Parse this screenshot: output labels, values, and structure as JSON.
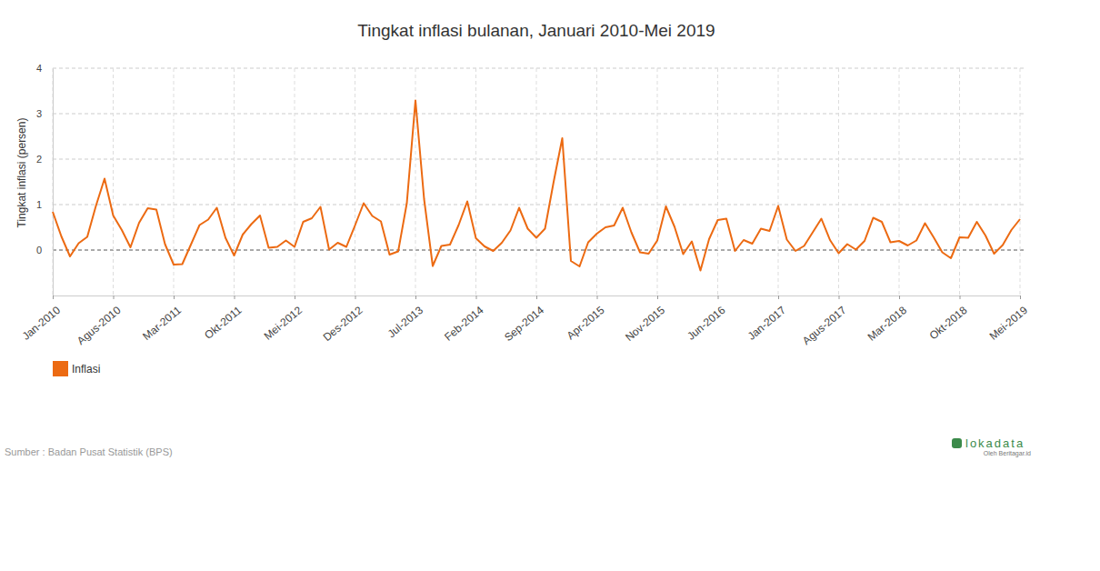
{
  "chart_data": {
    "type": "line",
    "title": "Tingkat inflasi bulanan, Januari 2010-Mei 2019",
    "y_label": "Tingkat inflasi (persen)",
    "categories": [
      "Jan-2010",
      null,
      null,
      null,
      null,
      null,
      null,
      "Agus-2010",
      null,
      null,
      null,
      null,
      null,
      null,
      "Mar-2011",
      null,
      null,
      null,
      null,
      null,
      null,
      "Okt-2011",
      null,
      null,
      null,
      null,
      null,
      null,
      "Mei-2012",
      null,
      null,
      null,
      null,
      null,
      null,
      "Des-2012",
      null,
      null,
      null,
      null,
      null,
      null,
      "Jul-2013",
      null,
      null,
      null,
      null,
      null,
      null,
      "Feb-2014",
      null,
      null,
      null,
      null,
      null,
      null,
      "Sep-2014",
      null,
      null,
      null,
      null,
      null,
      null,
      "Apr-2015",
      null,
      null,
      null,
      null,
      null,
      null,
      "Nov-2015",
      null,
      null,
      null,
      null,
      null,
      null,
      "Jun-2016",
      null,
      null,
      null,
      null,
      null,
      null,
      "Jan-2017",
      null,
      null,
      null,
      null,
      null,
      null,
      "Agus-2017",
      null,
      null,
      null,
      null,
      null,
      null,
      "Mar-2018",
      null,
      null,
      null,
      null,
      null,
      null,
      "Okt-2018",
      null,
      null,
      null,
      null,
      null,
      null,
      "Mei-2019"
    ],
    "series": [
      {
        "name": "Inflasi",
        "color": "#ec6a12",
        "values": [
          0.84,
          0.3,
          -0.14,
          0.15,
          0.29,
          0.97,
          1.57,
          0.76,
          0.44,
          0.06,
          0.6,
          0.92,
          0.89,
          0.13,
          -0.32,
          -0.31,
          0.12,
          0.55,
          0.67,
          0.93,
          0.27,
          -0.12,
          0.34,
          0.57,
          0.76,
          0.05,
          0.07,
          0.21,
          0.07,
          0.62,
          0.7,
          0.95,
          0.01,
          0.16,
          0.07,
          0.54,
          1.03,
          0.75,
          0.63,
          -0.1,
          -0.03,
          1.03,
          3.29,
          1.12,
          -0.35,
          0.09,
          0.12,
          0.55,
          1.07,
          0.26,
          0.08,
          -0.02,
          0.16,
          0.43,
          0.93,
          0.47,
          0.27,
          0.47,
          1.5,
          2.46,
          -0.24,
          -0.36,
          0.17,
          0.36,
          0.5,
          0.54,
          0.93,
          0.39,
          -0.05,
          -0.08,
          0.21,
          0.96,
          0.51,
          -0.09,
          0.19,
          -0.45,
          0.24,
          0.66,
          0.69,
          -0.02,
          0.22,
          0.14,
          0.47,
          0.42,
          0.97,
          0.23,
          -0.02,
          0.09,
          0.39,
          0.69,
          0.22,
          -0.07,
          0.13,
          0.01,
          0.2,
          0.71,
          0.62,
          0.17,
          0.2,
          0.1,
          0.21,
          0.59,
          0.28,
          -0.05,
          -0.18,
          0.28,
          0.27,
          0.62,
          0.32,
          -0.08,
          0.11,
          0.44,
          0.68
        ]
      }
    ],
    "ylim": [
      -1,
      4
    ],
    "yticks": [
      0,
      1,
      2,
      3,
      4
    ],
    "grid": true,
    "legend": "bottom-left",
    "annotations": [
      "Sumber : Badan Pusat Statistik (BPS)",
      "lokadata",
      "Oleh Beritagar.id"
    ]
  }
}
